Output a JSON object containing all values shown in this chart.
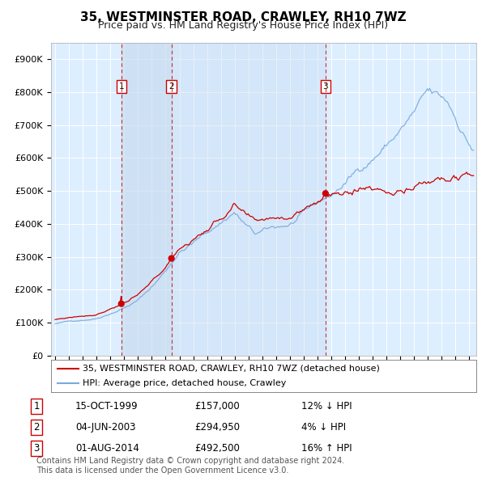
{
  "title": "35, WESTMINSTER ROAD, CRAWLEY, RH10 7WZ",
  "subtitle": "Price paid vs. HM Land Registry's House Price Index (HPI)",
  "ylim": [
    0,
    950000
  ],
  "yticks": [
    0,
    100000,
    200000,
    300000,
    400000,
    500000,
    600000,
    700000,
    800000,
    900000
  ],
  "ytick_labels": [
    "£0",
    "£100K",
    "£200K",
    "£300K",
    "£400K",
    "£500K",
    "£600K",
    "£700K",
    "£800K",
    "£900K"
  ],
  "bg_color": "#ffffff",
  "plot_bg_color": "#ddeeff",
  "grid_color": "#ffffff",
  "red_line_color": "#cc0000",
  "blue_line_color": "#7aaadd",
  "sale_marker_color": "#cc0000",
  "dashed_line_color": "#cc0000",
  "span_color": "#c8dcf0",
  "purchases": [
    {
      "label": "1",
      "date_num": 1999.79,
      "price": 157000,
      "date_str": "15-OCT-1999",
      "pct": "12% ↓ HPI"
    },
    {
      "label": "2",
      "date_num": 2003.42,
      "price": 294950,
      "date_str": "04-JUN-2003",
      "pct": "4% ↓ HPI"
    },
    {
      "label": "3",
      "date_num": 2014.58,
      "price": 492500,
      "date_str": "01-AUG-2014",
      "pct": "16% ↑ HPI"
    }
  ],
  "price_labels": [
    "£157,000",
    "£294,950",
    "£492,500"
  ],
  "legend_entries": [
    {
      "label": "35, WESTMINSTER ROAD, CRAWLEY, RH10 7WZ (detached house)",
      "color": "#cc0000"
    },
    {
      "label": "HPI: Average price, detached house, Crawley",
      "color": "#7aaadd"
    }
  ],
  "footer": "Contains HM Land Registry data © Crown copyright and database right 2024.\nThis data is licensed under the Open Government Licence v3.0.",
  "title_fontsize": 11,
  "subtitle_fontsize": 9,
  "axis_fontsize": 8,
  "legend_fontsize": 8,
  "table_fontsize": 8.5,
  "footer_fontsize": 7
}
